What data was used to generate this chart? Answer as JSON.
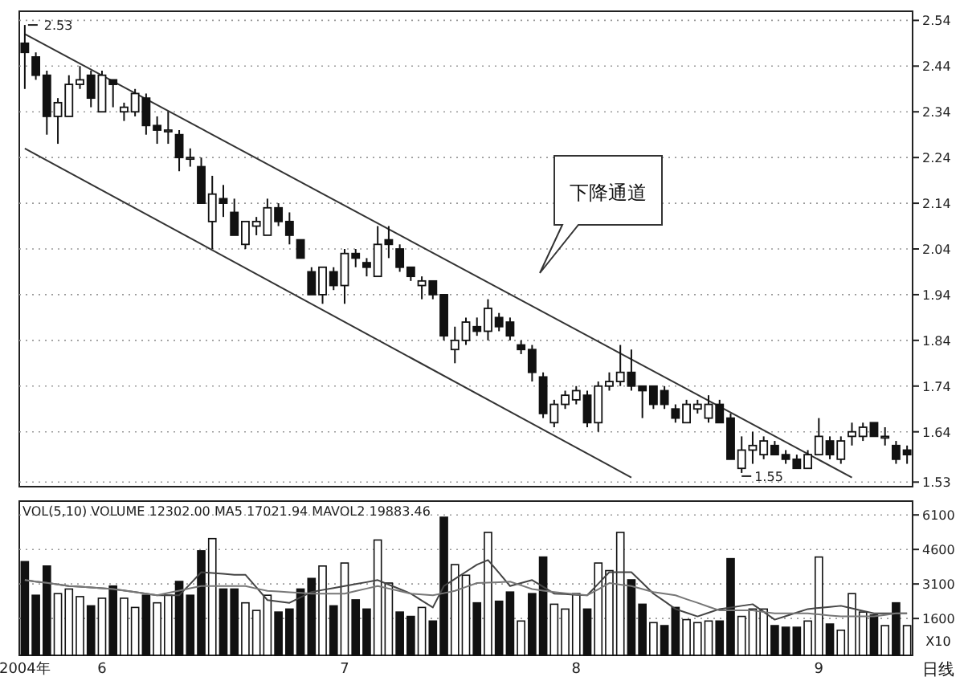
{
  "chart_data": [
    {
      "type": "candlestick",
      "color": "#111111",
      "categories": [
        null,
        null,
        null,
        null,
        null,
        null,
        null,
        null,
        null,
        null,
        null,
        null,
        null,
        null,
        null,
        null,
        null,
        null,
        null,
        null,
        null,
        null,
        null,
        null,
        null,
        null,
        null,
        null,
        null,
        null,
        null,
        null,
        null,
        null,
        null,
        null,
        null,
        null,
        null,
        null,
        null,
        null,
        null,
        null,
        null,
        null,
        null,
        null,
        null,
        null,
        null,
        null,
        null,
        null,
        null,
        null,
        null,
        null,
        null,
        null,
        null,
        null,
        null,
        null,
        null,
        null,
        null,
        null,
        null,
        null,
        null,
        null,
        null,
        null,
        null,
        null,
        null,
        null,
        null,
        null,
        null
      ],
      "ohlc": [
        [
          2.49,
          2.53,
          2.39,
          2.47
        ],
        [
          2.46,
          2.47,
          2.41,
          2.42
        ],
        [
          2.42,
          2.43,
          2.29,
          2.33
        ],
        [
          2.33,
          2.37,
          2.27,
          2.36
        ],
        [
          2.33,
          2.42,
          2.33,
          2.4
        ],
        [
          2.4,
          2.44,
          2.39,
          2.41
        ],
        [
          2.42,
          2.43,
          2.35,
          2.37
        ],
        [
          2.34,
          2.43,
          2.34,
          2.42
        ],
        [
          2.41,
          2.41,
          2.35,
          2.4
        ],
        [
          2.34,
          2.36,
          2.32,
          2.35
        ],
        [
          2.34,
          2.39,
          2.33,
          2.38
        ],
        [
          2.37,
          2.38,
          2.29,
          2.31
        ],
        [
          2.31,
          2.33,
          2.27,
          2.3
        ],
        [
          2.3,
          2.34,
          2.27,
          2.3
        ],
        [
          2.29,
          2.3,
          2.21,
          2.24
        ],
        [
          2.24,
          2.26,
          2.22,
          2.24
        ],
        [
          2.22,
          2.24,
          2.14,
          2.14
        ],
        [
          2.1,
          2.2,
          2.04,
          2.16
        ],
        [
          2.15,
          2.18,
          2.11,
          2.14
        ],
        [
          2.12,
          2.15,
          2.07,
          2.07
        ],
        [
          2.05,
          2.1,
          2.04,
          2.1
        ],
        [
          2.09,
          2.11,
          2.07,
          2.1
        ],
        [
          2.07,
          2.15,
          2.07,
          2.13
        ],
        [
          2.13,
          2.14,
          2.09,
          2.1
        ],
        [
          2.1,
          2.12,
          2.05,
          2.07
        ],
        [
          2.06,
          2.06,
          2.02,
          2.02
        ],
        [
          1.99,
          2.0,
          1.94,
          1.94
        ],
        [
          1.94,
          2.0,
          1.92,
          2.0
        ],
        [
          1.99,
          2.0,
          1.95,
          1.96
        ],
        [
          1.96,
          2.04,
          1.92,
          2.03
        ],
        [
          2.03,
          2.04,
          2.0,
          2.02
        ],
        [
          2.01,
          2.02,
          1.98,
          2.0
        ],
        [
          1.98,
          2.09,
          1.98,
          2.05
        ],
        [
          2.06,
          2.09,
          2.02,
          2.05
        ],
        [
          2.04,
          2.05,
          1.99,
          2.0
        ],
        [
          2.0,
          2.0,
          1.97,
          1.98
        ],
        [
          1.96,
          1.98,
          1.93,
          1.97
        ],
        [
          1.97,
          1.97,
          1.93,
          1.94
        ],
        [
          1.94,
          1.94,
          1.84,
          1.85
        ],
        [
          1.82,
          1.87,
          1.79,
          1.84
        ],
        [
          1.84,
          1.89,
          1.83,
          1.88
        ],
        [
          1.87,
          1.89,
          1.85,
          1.86
        ],
        [
          1.86,
          1.93,
          1.84,
          1.91
        ],
        [
          1.89,
          1.9,
          1.86,
          1.87
        ],
        [
          1.88,
          1.89,
          1.84,
          1.85
        ],
        [
          1.83,
          1.84,
          1.81,
          1.82
        ],
        [
          1.82,
          1.83,
          1.75,
          1.77
        ],
        [
          1.76,
          1.77,
          1.67,
          1.68
        ],
        [
          1.66,
          1.71,
          1.65,
          1.7
        ],
        [
          1.7,
          1.73,
          1.69,
          1.72
        ],
        [
          1.71,
          1.74,
          1.7,
          1.73
        ],
        [
          1.72,
          1.73,
          1.65,
          1.66
        ],
        [
          1.66,
          1.75,
          1.64,
          1.74
        ],
        [
          1.74,
          1.77,
          1.73,
          1.75
        ],
        [
          1.75,
          1.83,
          1.74,
          1.77
        ],
        [
          1.77,
          1.82,
          1.73,
          1.74
        ],
        [
          1.74,
          1.74,
          1.67,
          1.73
        ],
        [
          1.74,
          1.74,
          1.69,
          1.7
        ],
        [
          1.73,
          1.74,
          1.69,
          1.7
        ],
        [
          1.69,
          1.7,
          1.66,
          1.67
        ],
        [
          1.66,
          1.71,
          1.66,
          1.7
        ],
        [
          1.69,
          1.71,
          1.68,
          1.7
        ],
        [
          1.67,
          1.72,
          1.66,
          1.7
        ],
        [
          1.7,
          1.71,
          1.66,
          1.66
        ],
        [
          1.67,
          1.68,
          1.58,
          1.58
        ],
        [
          1.56,
          1.63,
          1.55,
          1.6
        ],
        [
          1.6,
          1.64,
          1.57,
          1.61
        ],
        [
          1.59,
          1.63,
          1.58,
          1.62
        ],
        [
          1.61,
          1.62,
          1.59,
          1.59
        ],
        [
          1.59,
          1.6,
          1.57,
          1.58
        ],
        [
          1.58,
          1.59,
          1.56,
          1.56
        ],
        [
          1.56,
          1.6,
          1.56,
          1.59
        ],
        [
          1.59,
          1.67,
          1.59,
          1.63
        ],
        [
          1.62,
          1.63,
          1.58,
          1.59
        ],
        [
          1.58,
          1.63,
          1.57,
          1.62
        ],
        [
          1.63,
          1.66,
          1.61,
          1.64
        ],
        [
          1.63,
          1.66,
          1.62,
          1.65
        ],
        [
          1.66,
          1.66,
          1.63,
          1.63
        ],
        [
          1.63,
          1.65,
          1.61,
          1.63
        ],
        [
          1.61,
          1.62,
          1.57,
          1.58
        ],
        [
          1.6,
          1.61,
          1.57,
          1.59
        ]
      ],
      "series": [
        {
          "type": "line",
          "color": "#333333",
          "values": [
            2.51,
            null,
            null,
            null,
            null,
            null,
            null,
            null,
            null,
            null,
            null,
            null,
            null,
            null,
            null,
            null,
            null,
            null,
            null,
            null,
            null,
            null,
            null,
            null,
            null,
            null,
            null,
            null,
            null,
            null,
            null,
            null,
            null,
            null,
            null,
            null,
            null,
            null,
            null,
            null,
            null,
            null,
            null,
            null,
            null,
            null,
            null,
            null,
            null,
            null,
            null,
            null,
            null,
            null,
            null,
            null,
            null,
            null,
            null,
            null,
            null,
            null,
            null,
            null,
            null,
            null,
            null,
            null,
            null,
            null,
            null,
            null,
            null,
            null,
            null,
            1.54,
            null,
            null,
            null,
            null,
            null
          ]
        },
        {
          "type": "line",
          "color": "#333333",
          "values": [
            2.26,
            null,
            null,
            null,
            null,
            null,
            null,
            null,
            null,
            null,
            null,
            null,
            null,
            null,
            null,
            null,
            null,
            null,
            null,
            null,
            null,
            null,
            null,
            null,
            null,
            null,
            null,
            null,
            null,
            null,
            null,
            null,
            null,
            null,
            null,
            null,
            null,
            null,
            null,
            null,
            null,
            null,
            null,
            null,
            null,
            null,
            null,
            null,
            null,
            null,
            null,
            null,
            null,
            null,
            null,
            1.54,
            null,
            null,
            null,
            null,
            null,
            null,
            null,
            null,
            null,
            null,
            null,
            null,
            null,
            null,
            null,
            null,
            null,
            null,
            null,
            null,
            null,
            null,
            null,
            null,
            null
          ]
        }
      ],
      "ylim": [
        1.52,
        2.56
      ],
      "yticks": [
        1.53,
        1.64,
        1.74,
        1.84,
        1.94,
        2.04,
        2.14,
        2.24,
        2.34,
        2.44,
        2.54
      ],
      "grid": "y",
      "tick_labels": "y",
      "annotations": [
        "2.53",
        "1.55",
        "下降通道"
      ]
    },
    {
      "type": "bar",
      "title": "VOL(5,10) VOLUME 12302.00 MA5 17021.94 MAVOL2 19883.46",
      "categories": [
        "2004年",
        null,
        null,
        null,
        null,
        null,
        null,
        "6",
        null,
        null,
        null,
        null,
        null,
        null,
        null,
        null,
        null,
        null,
        null,
        null,
        null,
        null,
        null,
        null,
        null,
        null,
        null,
        null,
        null,
        "7",
        null,
        null,
        null,
        null,
        null,
        null,
        null,
        null,
        null,
        null,
        null,
        null,
        null,
        null,
        null,
        null,
        null,
        null,
        null,
        null,
        "8",
        null,
        null,
        null,
        null,
        null,
        null,
        null,
        null,
        null,
        null,
        null,
        null,
        null,
        null,
        null,
        null,
        null,
        null,
        null,
        null,
        null,
        "9",
        null,
        null,
        null,
        null,
        null,
        null,
        null,
        null
      ],
      "series": [
        {
          "type": "bar",
          "values": [
            4070,
            2610,
            3880,
            2680,
            2880,
            2550,
            2150,
            2480,
            3010,
            2480,
            2080,
            2610,
            2280,
            2610,
            3210,
            2610,
            4540,
            5070,
            2880,
            2880,
            2280,
            1950,
            2610,
            1880,
            2010,
            2880,
            3340,
            3880,
            2150,
            4010,
            2410,
            2010,
            5010,
            3140,
            1880,
            1690,
            2080,
            1490,
            6000,
            3940,
            3480,
            2280,
            5340,
            2350,
            2750,
            1490,
            2680,
            4270,
            2220,
            2010,
            2680,
            2010,
            4010,
            3680,
            5340,
            3280,
            2220,
            1420,
            1290,
            2080,
            1550,
            1420,
            1490,
            1490,
            4200,
            1690,
            2010,
            2010,
            1290,
            1220,
            1220,
            1490,
            4270,
            1360,
            1090,
            2680,
            1880,
            1750,
            1290,
            2280,
            1290
          ],
          "colors": [
            "#111111",
            "#111111",
            "#111111",
            "#ffffff",
            "#ffffff",
            "#ffffff",
            "#111111",
            "#ffffff",
            "#111111",
            "#ffffff",
            "#ffffff",
            "#111111",
            "#ffffff",
            "#ffffff",
            "#111111",
            "#111111",
            "#111111",
            "#ffffff",
            "#111111",
            "#111111",
            "#ffffff",
            "#ffffff",
            "#ffffff",
            "#111111",
            "#111111",
            "#111111",
            "#111111",
            "#ffffff",
            "#111111",
            "#ffffff",
            "#111111",
            "#111111",
            "#ffffff",
            "#ffffff",
            "#111111",
            "#111111",
            "#ffffff",
            "#111111",
            "#111111",
            "#ffffff",
            "#ffffff",
            "#111111",
            "#ffffff",
            "#111111",
            "#111111",
            "#ffffff",
            "#111111",
            "#111111",
            "#ffffff",
            "#ffffff",
            "#ffffff",
            "#111111",
            "#ffffff",
            "#ffffff",
            "#ffffff",
            "#111111",
            "#111111",
            "#ffffff",
            "#111111",
            "#111111",
            "#ffffff",
            "#ffffff",
            "#ffffff",
            "#111111",
            "#111111",
            "#ffffff",
            "#ffffff",
            "#ffffff",
            "#111111",
            "#111111",
            "#111111",
            "#ffffff",
            "#ffffff",
            "#111111",
            "#ffffff",
            "#ffffff",
            "#ffffff",
            "#111111",
            "#ffffff",
            "#111111",
            "#ffffff"
          ]
        },
        {
          "type": "line",
          "color": "#444444",
          "values": [
            3270,
            3200,
            3150,
            3080,
            3010,
            2980,
            2950,
            2910,
            2880,
            2820,
            2750,
            2680,
            2610,
            2610,
            2610,
            3100,
            3610,
            3580,
            3540,
            3500,
            3500,
            2950,
            2400,
            2340,
            2280,
            2520,
            2750,
            2840,
            2920,
            3010,
            3100,
            3180,
            3270,
            3070,
            2880,
            2680,
            2380,
            2080,
            3010,
            3320,
            3630,
            3940,
            4140,
            3580,
            3010,
            3140,
            3270,
            2980,
            2680,
            2660,
            2630,
            2610,
            3110,
            3610,
            3610,
            3610,
            3150,
            2680,
            2350,
            2010,
            1850,
            1690,
            1850,
            2010,
            2080,
            2150,
            2220,
            1890,
            1550,
            1700,
            1860,
            2010,
            2060,
            2100,
            2150,
            2040,
            1930,
            1820,
            1820,
            1820,
            1820
          ]
        },
        {
          "type": "line",
          "color": "#777777",
          "values": [
            3270,
            3200,
            3150,
            3080,
            3010,
            2980,
            2950,
            2910,
            2880,
            2810,
            2750,
            2680,
            2610,
            2710,
            2810,
            2910,
            3010,
            3010,
            3010,
            3010,
            3010,
            2900,
            2800,
            2770,
            2740,
            2710,
            2680,
            2680,
            2680,
            2680,
            2790,
            2900,
            3010,
            2900,
            2790,
            2680,
            2640,
            2610,
            2700,
            2800,
            2970,
            3140,
            3160,
            3180,
            3200,
            3040,
            2880,
            2810,
            2750,
            2700,
            2650,
            2610,
            2870,
            3140,
            3070,
            3010,
            2880,
            2750,
            2680,
            2610,
            2440,
            2280,
            2110,
            1950,
            1950,
            1950,
            1950,
            1880,
            1820,
            1820,
            1820,
            1820,
            1780,
            1730,
            1690,
            1690,
            1690,
            1690,
            1750,
            1820,
            1820
          ]
        }
      ],
      "ylim": [
        0,
        6700
      ],
      "yticks": [
        1600,
        3100,
        4600,
        6100
      ],
      "grid": "y",
      "annotations": [
        "X10",
        "日线"
      ]
    }
  ]
}
